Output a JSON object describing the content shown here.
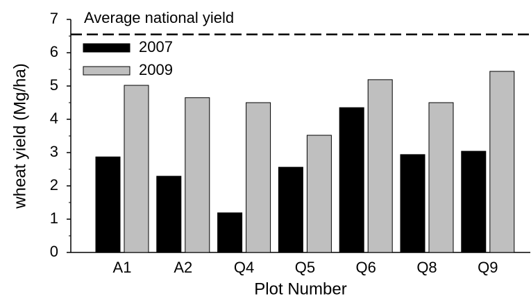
{
  "chart_data": {
    "type": "bar",
    "x_label": "Plot Number",
    "y_label": "wheat yield (Mg/ha)",
    "categories": [
      "A1",
      "A2",
      "Q4",
      "Q5",
      "Q6",
      "Q8",
      "Q9"
    ],
    "series": [
      {
        "name": "2007",
        "color": "#000000",
        "values": [
          2.87,
          2.29,
          1.19,
          2.56,
          4.35,
          2.94,
          3.04
        ]
      },
      {
        "name": "2009",
        "color": "#bfbfbf",
        "values": [
          5.02,
          4.65,
          4.5,
          3.52,
          5.19,
          4.5,
          5.44
        ]
      }
    ],
    "reference_line": {
      "value": 6.55,
      "label": "Average national yield"
    },
    "ylim": [
      0,
      7
    ],
    "yticks": [
      0,
      1,
      2,
      3,
      4,
      5,
      6,
      7
    ],
    "minor_yticks": [
      0.5,
      1.5,
      2.5,
      3.5,
      4.5,
      5.5,
      6.5
    ],
    "legend": "upper left"
  }
}
